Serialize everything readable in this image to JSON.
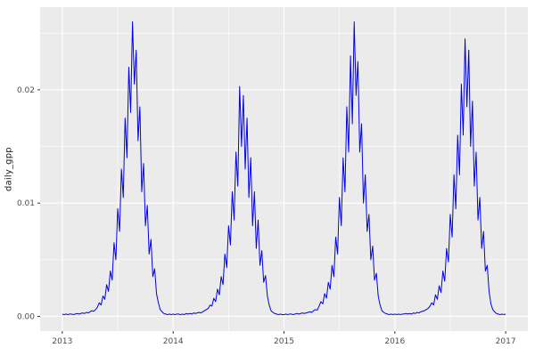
{
  "chart_data": {
    "type": "line",
    "title": "",
    "xlabel": "",
    "ylabel": "daily_gpp",
    "legend": "none",
    "grid": true,
    "x_ticks": [
      2013,
      2014,
      2015,
      2016,
      2017
    ],
    "x_tick_labels": [
      "2013",
      "2014",
      "2015",
      "2016",
      "2017"
    ],
    "x_minor_ticks": [
      2013.5,
      2014.5,
      2015.5,
      2016.5
    ],
    "y_ticks": [
      0.0,
      0.01,
      0.02
    ],
    "y_tick_labels": [
      "0.00",
      "0.01",
      "0.02"
    ],
    "y_minor_ticks": [
      0.005,
      0.015,
      0.025
    ],
    "xlim": [
      2012.8,
      2017.2
    ],
    "ylim": [
      -0.0013,
      0.0273
    ],
    "colors": {
      "line": "#0000EE",
      "panel_bg": "#EBEBEB",
      "grid": "#FFFFFF",
      "tick_mark": "#333333",
      "tick_label": "#4D4D4D",
      "axis_title": "#1A1A1A"
    },
    "series": [
      {
        "name": "daily_gpp",
        "x_start": 2013,
        "x_step_years": 0.0166667,
        "y": [
          0.0002,
          0.00015,
          0.0002,
          0.00015,
          0.0002,
          0.0002,
          0.00015,
          0.0002,
          0.00025,
          0.0002,
          0.00025,
          0.0003,
          0.00025,
          0.00035,
          0.0003,
          0.0004,
          0.0005,
          0.00045,
          0.0006,
          0.0008,
          0.0012,
          0.001,
          0.0018,
          0.0015,
          0.0028,
          0.0022,
          0.004,
          0.0032,
          0.0065,
          0.005,
          0.0095,
          0.0075,
          0.013,
          0.0105,
          0.0175,
          0.014,
          0.022,
          0.018,
          0.026,
          0.0205,
          0.0235,
          0.0155,
          0.0185,
          0.011,
          0.0135,
          0.008,
          0.0098,
          0.0055,
          0.0068,
          0.0035,
          0.0042,
          0.002,
          0.0012,
          0.0006,
          0.0004,
          0.00025,
          0.0002,
          0.00015,
          0.0002,
          0.00015,
          0.0002,
          0.00015,
          0.0002,
          0.0002,
          0.00015,
          0.0002,
          0.00015,
          0.00025,
          0.0002,
          0.00025,
          0.0002,
          0.0003,
          0.00025,
          0.0003,
          0.00035,
          0.0003,
          0.0004,
          0.0005,
          0.0006,
          0.0007,
          0.001,
          0.0009,
          0.0016,
          0.0013,
          0.0024,
          0.0019,
          0.0035,
          0.0028,
          0.0055,
          0.0043,
          0.008,
          0.0063,
          0.011,
          0.0085,
          0.0145,
          0.0115,
          0.0203,
          0.015,
          0.0195,
          0.013,
          0.0175,
          0.0105,
          0.014,
          0.008,
          0.011,
          0.006,
          0.0085,
          0.0045,
          0.0058,
          0.003,
          0.0036,
          0.0018,
          0.001,
          0.0005,
          0.00035,
          0.00025,
          0.0002,
          0.00015,
          0.0002,
          0.00015,
          0.00015,
          0.0002,
          0.00015,
          0.0002,
          0.0002,
          0.00015,
          0.0002,
          0.00025,
          0.0002,
          0.00025,
          0.0003,
          0.00025,
          0.0003,
          0.00035,
          0.0004,
          0.00035,
          0.0005,
          0.0006,
          0.00055,
          0.0009,
          0.0013,
          0.0011,
          0.002,
          0.0016,
          0.003,
          0.0024,
          0.0045,
          0.0035,
          0.007,
          0.0055,
          0.0105,
          0.008,
          0.014,
          0.011,
          0.0185,
          0.0145,
          0.023,
          0.017,
          0.026,
          0.0195,
          0.0225,
          0.0145,
          0.017,
          0.01,
          0.0125,
          0.0075,
          0.009,
          0.005,
          0.0062,
          0.0032,
          0.0038,
          0.0018,
          0.001,
          0.0005,
          0.00035,
          0.00025,
          0.0002,
          0.00015,
          0.0002,
          0.00015,
          0.0002,
          0.00015,
          0.0002,
          0.00015,
          0.0002,
          0.0002,
          0.00025,
          0.0002,
          0.00025,
          0.0002,
          0.0003,
          0.00025,
          0.00035,
          0.0003,
          0.0004,
          0.00045,
          0.0005,
          0.0006,
          0.0007,
          0.0009,
          0.0012,
          0.001,
          0.0019,
          0.0015,
          0.0027,
          0.0021,
          0.004,
          0.0031,
          0.006,
          0.0048,
          0.009,
          0.007,
          0.0125,
          0.0095,
          0.016,
          0.0125,
          0.0205,
          0.016,
          0.0245,
          0.0185,
          0.0235,
          0.015,
          0.019,
          0.0115,
          0.0145,
          0.0085,
          0.0105,
          0.006,
          0.0075,
          0.004,
          0.0045,
          0.0022,
          0.0011,
          0.0006,
          0.0004,
          0.00025,
          0.0002,
          0.00015,
          0.0002,
          0.00015,
          0.0002
        ]
      }
    ]
  }
}
